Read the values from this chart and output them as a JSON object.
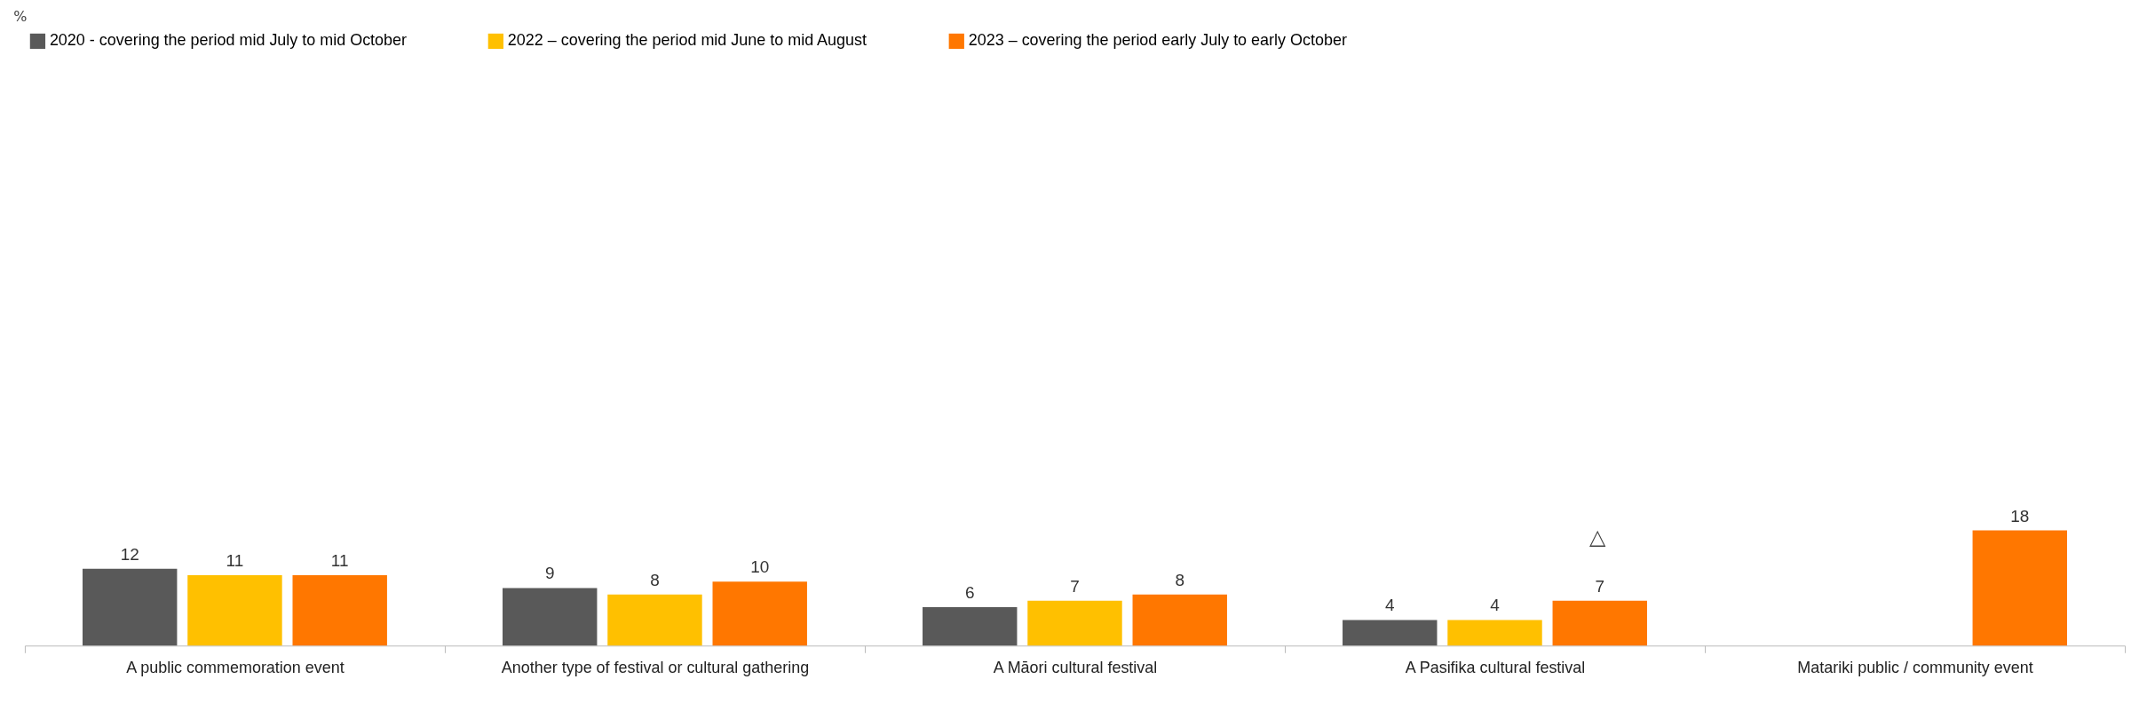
{
  "chart_data": {
    "type": "bar",
    "categories": [
      "A public commemoration event",
      "Another type of festival or cultural gathering",
      "A Māori cultural festival",
      "A Pasifika cultural festival",
      "Matariki public / community event"
    ],
    "series": [
      {
        "name": "2020 - covering the period mid July to mid October",
        "color": "#595959",
        "values": [
          12,
          9,
          6,
          4,
          null
        ]
      },
      {
        "name": "2022 – covering the period mid June to mid August",
        "color": "#ffc000",
        "values": [
          11,
          8,
          7,
          4,
          null
        ]
      },
      {
        "name": "2023 – covering the period early July to early October",
        "color": "#ff7700",
        "values": [
          11,
          10,
          8,
          7,
          18
        ]
      }
    ],
    "data_labels": true,
    "legend": "top",
    "grid": false,
    "annotations": [
      "%",
      "△"
    ]
  }
}
